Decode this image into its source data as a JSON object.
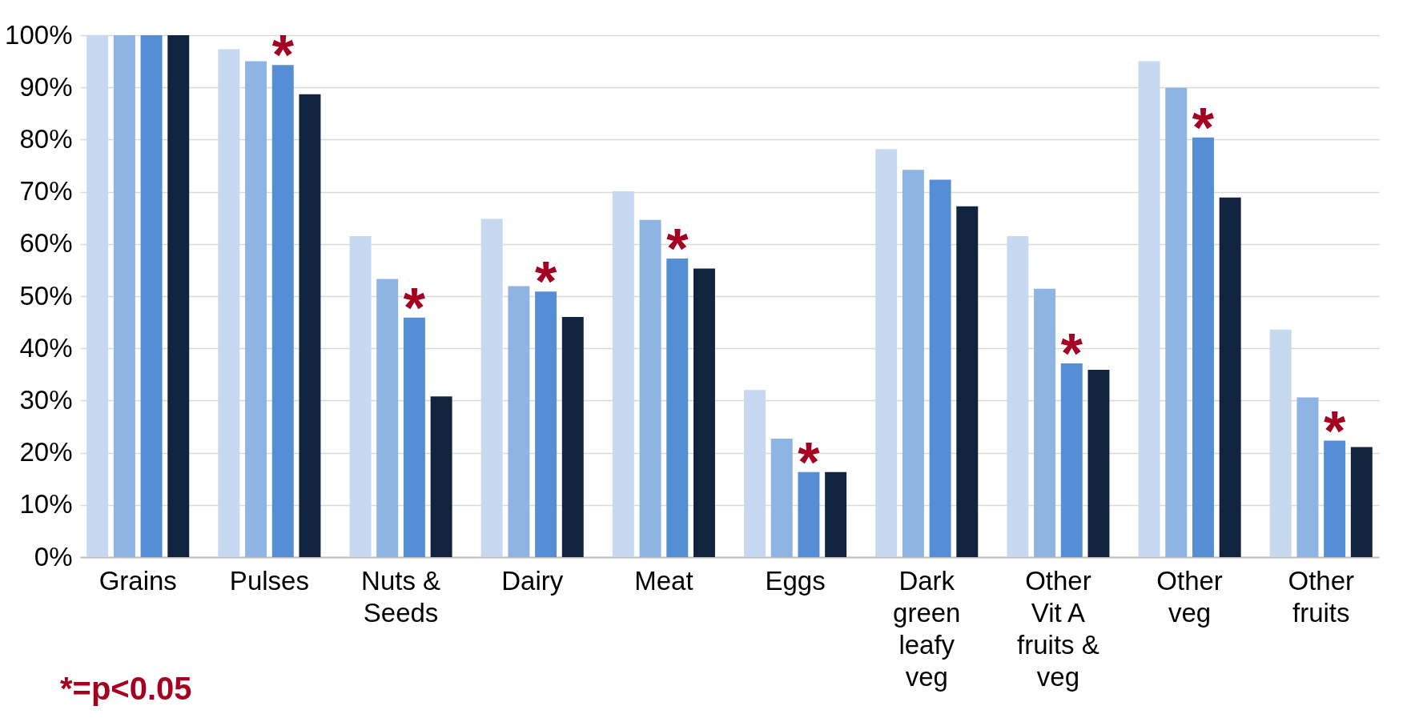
{
  "chart_data": {
    "type": "bar",
    "categories": [
      "Grains",
      "Pulses",
      "Nuts & Seeds",
      "Dairy",
      "Meat",
      "Eggs",
      "Dark green leafy veg",
      "Other Vit A fruits & veg",
      "Other veg",
      "Other fruits"
    ],
    "series": [
      {
        "color": "#c6d9f1",
        "values": [
          100,
          97.3,
          61.5,
          64.8,
          70.1,
          32.0,
          78.2,
          61.5,
          95.0,
          43.6
        ]
      },
      {
        "color": "#8db4e2",
        "values": [
          100,
          95.0,
          53.3,
          51.9,
          64.6,
          22.7,
          74.2,
          51.4,
          89.9,
          30.6
        ]
      },
      {
        "color": "#558ed5",
        "values": [
          100,
          94.3,
          45.9,
          50.9,
          57.2,
          16.3,
          72.3,
          37.1,
          80.4,
          22.3
        ]
      },
      {
        "color": "#10243f",
        "values": [
          100,
          88.7,
          30.8,
          46.0,
          55.3,
          16.3,
          67.2,
          35.9,
          68.9,
          21.1
        ]
      }
    ],
    "ylim": [
      0,
      100
    ],
    "yticks": [
      {
        "value": 0,
        "label": "0%"
      },
      {
        "value": 10,
        "label": "10%"
      },
      {
        "value": 20,
        "label": "20%"
      },
      {
        "value": 30,
        "label": "30%"
      },
      {
        "value": 40,
        "label": "40%"
      },
      {
        "value": 50,
        "label": "50%"
      },
      {
        "value": 60,
        "label": "60%"
      },
      {
        "value": 70,
        "label": "70%"
      },
      {
        "value": 80,
        "label": "80%"
      },
      {
        "value": 90,
        "label": "90%"
      },
      {
        "value": 100,
        "label": "100%"
      }
    ],
    "grid": "y",
    "legend": false,
    "annotations": [
      {
        "text": "*",
        "x": "Pulses",
        "y": 94.3
      },
      {
        "text": "*",
        "x": "Nuts & Seeds",
        "y": 45.9
      },
      {
        "text": "*",
        "x": "Dairy",
        "y": 50.9
      },
      {
        "text": "*",
        "x": "Meat",
        "y": 57.2
      },
      {
        "text": "*",
        "x": "Eggs",
        "y": 16.3
      },
      {
        "text": "*",
        "x": "Other Vit A fruits & veg",
        "y": 37.1
      },
      {
        "text": "*",
        "x": "Other veg",
        "y": 80.4
      },
      {
        "text": "*",
        "x": "Other fruits",
        "y": 22.3
      },
      "*=p<0.05"
    ]
  }
}
